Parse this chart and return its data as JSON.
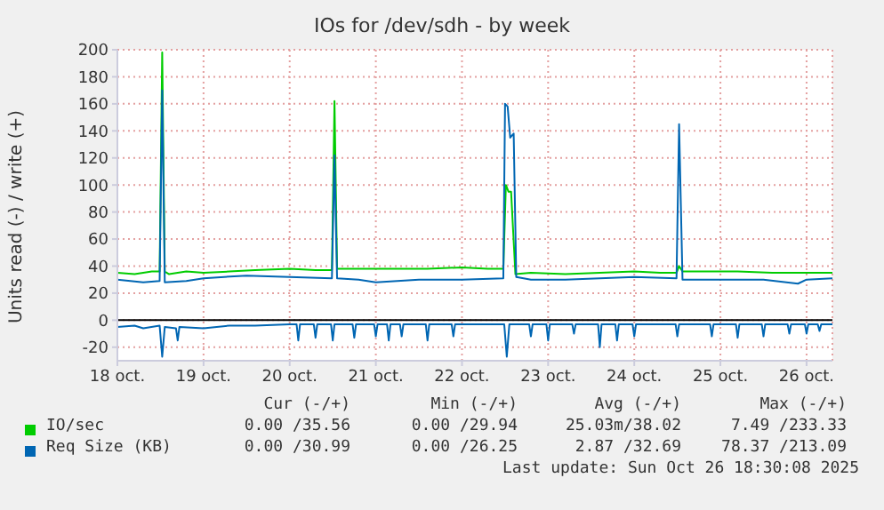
{
  "chart_data": {
    "type": "line",
    "title": "IOs for /dev/sdh - by week",
    "ylabel": "Units read (-) / write (+)",
    "xlim": [
      "--10-18",
      "--10-26T07:12"
    ],
    "xticks": [
      {
        "value": "--10-18",
        "label": "18 oct."
      },
      {
        "value": "--10-19",
        "label": "19 oct."
      },
      {
        "value": "--10-20",
        "label": "20 oct."
      },
      {
        "value": "--10-21",
        "label": "21 oct."
      },
      {
        "value": "--10-22",
        "label": "22 oct."
      },
      {
        "value": "--10-23",
        "label": "23 oct."
      },
      {
        "value": "--10-24",
        "label": "24 oct."
      },
      {
        "value": "--10-25",
        "label": "25 oct."
      },
      {
        "value": "--10-26",
        "label": "26 oct."
      }
    ],
    "ylim": [
      -30,
      200
    ],
    "yticks": [
      -20,
      0,
      20,
      40,
      60,
      80,
      100,
      120,
      140,
      160,
      180,
      200
    ],
    "grid": true,
    "legend": "bottom",
    "ref_lines": [
      {
        "axis": "y",
        "value": 0,
        "color": "#000000"
      }
    ],
    "series": [
      {
        "name": "IO/sec",
        "color": "#00cc00",
        "x": [
          "--10-18T00:00",
          "--10-18T04:48",
          "--10-18T09:36",
          "--10-18T11:46",
          "--10-18T12:29",
          "--10-18T13:12",
          "--10-18T14:24",
          "--10-18T19:12",
          "--10-19T00:00",
          "--10-19T07:12",
          "--10-19T14:24",
          "--10-20T00:00",
          "--10-20T07:12",
          "--10-20T11:46",
          "--10-20T12:29",
          "--10-20T13:12",
          "--10-20T19:12",
          "--10-21T04:48",
          "--10-21T14:24",
          "--10-22T00:00",
          "--10-22T07:12",
          "--10-22T11:31",
          "--10-22T12:14",
          "--10-22T12:58",
          "--10-22T13:41",
          "--10-22T14:53",
          "--10-22T19:12",
          "--10-23T04:48",
          "--10-23T14:24",
          "--10-24T00:00",
          "--10-24T07:12",
          "--10-24T11:46",
          "--10-24T12:29",
          "--10-24T13:26",
          "--10-24T19:12",
          "--10-25T04:48",
          "--10-25T14:24",
          "--10-26T00:00",
          "--10-26T07:12"
        ],
        "values": [
          35,
          34,
          36,
          36,
          198,
          36,
          34,
          36,
          35,
          36,
          37,
          38,
          37,
          37,
          162,
          38,
          38,
          38,
          38,
          39,
          38,
          38,
          100,
          95,
          95,
          34,
          35,
          34,
          35,
          36,
          35,
          35,
          40,
          36,
          36,
          36,
          35,
          35,
          35
        ]
      },
      {
        "name": "Req Size (KB)",
        "color": "#0066b3",
        "x": [
          "--10-18T00:00",
          "--10-18T07:12",
          "--10-18T11:46",
          "--10-18T12:29",
          "--10-18T13:12",
          "--10-18T19:12",
          "--10-19T00:00",
          "--10-19T12:00",
          "--10-20T00:00",
          "--10-20T11:46",
          "--10-20T12:29",
          "--10-20T13:12",
          "--10-20T19:12",
          "--10-21T00:00",
          "--10-21T12:00",
          "--10-22T00:00",
          "--10-22T11:31",
          "--10-22T12:00",
          "--10-22T12:43",
          "--10-22T13:26",
          "--10-22T14:24",
          "--10-22T15:07",
          "--10-22T19:12",
          "--10-23T04:48",
          "--10-23T14:24",
          "--10-24T00:00",
          "--10-24T11:46",
          "--10-24T12:29",
          "--10-24T13:26",
          "--10-25T00:00",
          "--10-25T12:00",
          "--10-25T21:36",
          "--10-26T00:00",
          "--10-26T07:12"
        ],
        "values": [
          30,
          28,
          29,
          170,
          28,
          29,
          31,
          33,
          32,
          31,
          122,
          31,
          30,
          28,
          30,
          30,
          31,
          160,
          158,
          135,
          138,
          32,
          30,
          30,
          31,
          32,
          31,
          145,
          30,
          30,
          30,
          27,
          30,
          31
        ]
      },
      {
        "color": "#0066b3",
        "x": [
          "--10-18T00:00",
          "--10-18T04:48",
          "--10-18T07:12",
          "--10-18T11:46",
          "--10-18T12:29",
          "--10-18T13:12",
          "--10-18T16:19",
          "--10-18T16:48",
          "--10-18T17:17",
          "--10-19T00:00",
          "--10-19T07:12",
          "--10-19T14:24",
          "--10-20T00:00",
          "--10-20T01:55",
          "--10-20T02:24",
          "--10-20T02:53",
          "--10-20T06:43",
          "--10-20T07:12",
          "--10-20T07:41",
          "--10-20T11:31",
          "--10-20T12:00",
          "--10-20T12:29",
          "--10-20T17:31",
          "--10-20T18:00",
          "--10-20T18:29",
          "--10-20T23:31",
          "--10-21T00:00",
          "--10-21T00:29",
          "--10-21T03:07",
          "--10-21T03:36",
          "--10-21T04:05",
          "--10-21T06:43",
          "--10-21T07:12",
          "--10-21T07:41",
          "--10-21T13:55",
          "--10-21T14:24",
          "--10-21T14:53",
          "--10-21T21:07",
          "--10-21T21:36",
          "--10-21T22:05",
          "--10-22T04:48",
          "--10-22T11:46",
          "--10-22T12:29",
          "--10-22T13:12",
          "--10-22T18:43",
          "--10-22T19:12",
          "--10-22T19:41",
          "--10-22T23:31",
          "--10-23T00:00",
          "--10-23T00:29",
          "--10-23T06:43",
          "--10-23T07:12",
          "--10-23T07:41",
          "--10-23T13:55",
          "--10-23T14:24",
          "--10-23T14:53",
          "--10-23T18:43",
          "--10-23T19:12",
          "--10-23T19:41",
          "--10-23T23:31",
          "--10-24T00:00",
          "--10-24T00:29",
          "--10-24T07:12",
          "--10-24T11:31",
          "--10-24T12:00",
          "--10-24T12:29",
          "--10-24T21:07",
          "--10-24T21:36",
          "--10-24T22:05",
          "--10-25T04:19",
          "--10-25T04:48",
          "--10-25T05:17",
          "--10-25T11:31",
          "--10-25T12:00",
          "--10-25T12:29",
          "--10-25T18:43",
          "--10-25T19:12",
          "--10-25T19:41",
          "--10-25T23:31",
          "--10-26T00:00",
          "--10-26T00:29",
          "--10-26T03:07",
          "--10-26T03:36",
          "--10-26T04:05",
          "--10-26T07:12"
        ],
        "values": [
          -5,
          -4,
          -6,
          -4,
          -27,
          -5,
          -6,
          -15,
          -5,
          -6,
          -4,
          -4,
          -3,
          -3,
          -15,
          -3,
          -3,
          -13,
          -3,
          -3,
          -15,
          -3,
          -3,
          -13,
          -3,
          -3,
          -12,
          -3,
          -3,
          -15,
          -3,
          -3,
          -12,
          -3,
          -3,
          -15,
          -3,
          -3,
          -12,
          -3,
          -3,
          -3,
          -27,
          -3,
          -3,
          -12,
          -3,
          -3,
          -15,
          -3,
          -3,
          -10,
          -3,
          -3,
          -20,
          -3,
          -3,
          -15,
          -3,
          -3,
          -12,
          -3,
          -3,
          -3,
          -12,
          -3,
          -3,
          -12,
          -3,
          -3,
          -13,
          -3,
          -3,
          -12,
          -3,
          -3,
          -10,
          -3,
          -3,
          -10,
          -3,
          -3,
          -8,
          -3,
          -3
        ]
      }
    ],
    "annotations": [
      "Cur (-/+)",
      "Min (-/+)",
      "Avg (-/+)",
      "Max (-/+)",
      "0.00 /35.56",
      "0.00 /29.94",
      "25.03m/38.02",
      "7.49 /233.33",
      "0.00 /30.99",
      "0.00 /26.25",
      "2.87 /32.69",
      "78.37 /213.09",
      "Last update: Sun Oct 26 18:30:08 2025"
    ]
  }
}
